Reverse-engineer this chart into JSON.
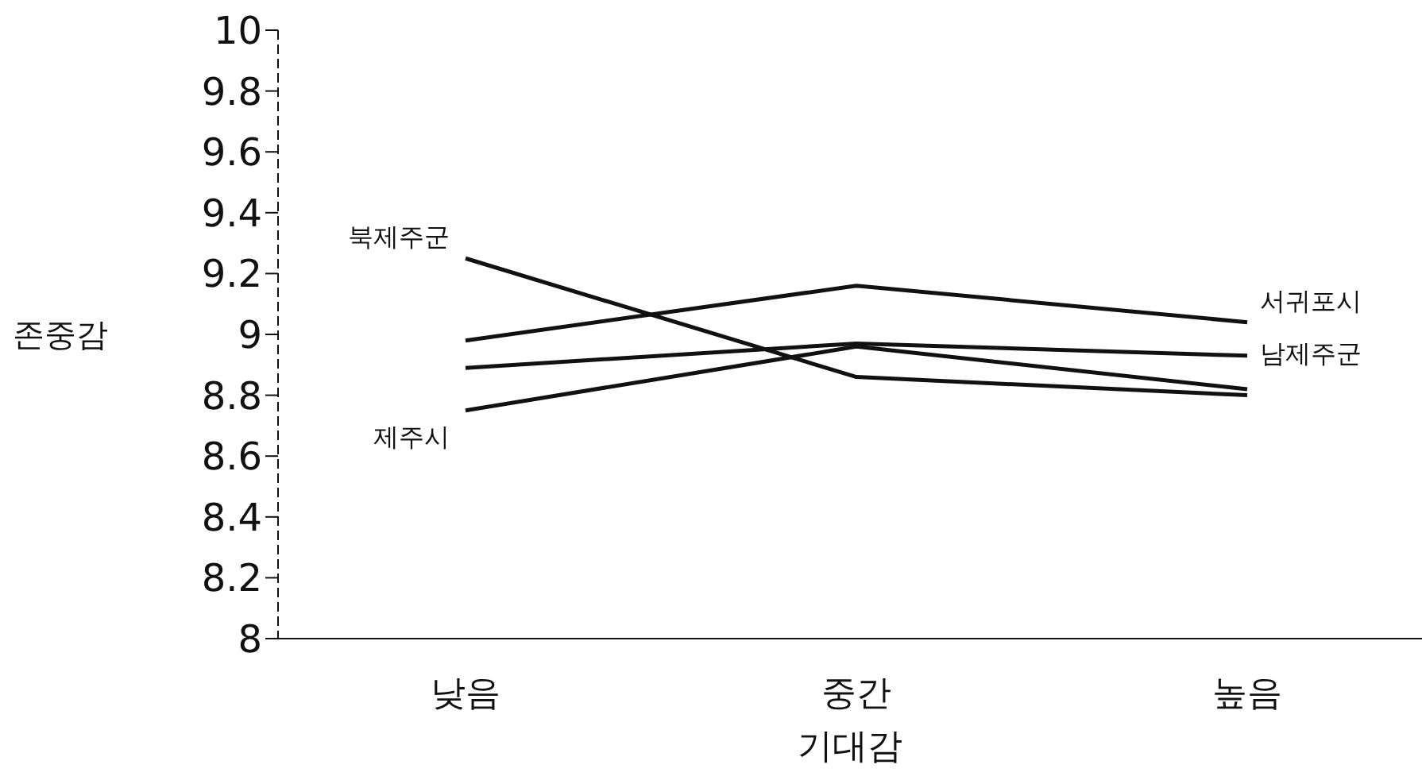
{
  "chart_data": {
    "type": "line",
    "xlabel": "기대감",
    "ylabel": "존중감",
    "categories": [
      "낮음",
      "중간",
      "높음"
    ],
    "series": [
      {
        "name": "북제주군",
        "color": "#111111",
        "values": [
          9.25,
          8.86,
          8.8
        ]
      },
      {
        "name": "서귀포시",
        "color": "#111111",
        "values": [
          8.98,
          9.16,
          9.04
        ]
      },
      {
        "name": "남제주군",
        "color": "#111111",
        "values": [
          8.89,
          8.97,
          8.93
        ]
      },
      {
        "name": "제주시",
        "color": "#111111",
        "values": [
          8.75,
          8.96,
          8.82
        ]
      }
    ],
    "ylim": [
      8,
      10
    ],
    "yticks": [
      8,
      8.2,
      8.4,
      8.6,
      8.8,
      9,
      9.2,
      9.4,
      9.6,
      9.8,
      10
    ],
    "grid": false,
    "legend": false,
    "marker": "none",
    "line_style": "solid"
  }
}
